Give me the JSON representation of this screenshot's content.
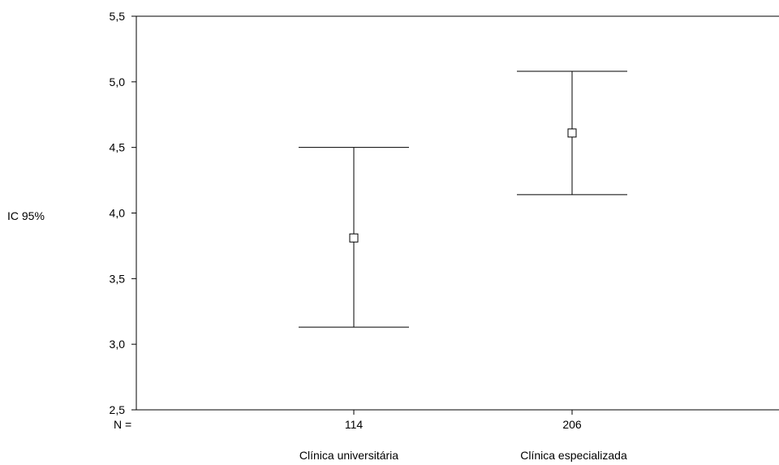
{
  "chart_data": {
    "type": "errorbar",
    "title": "",
    "xlabel": "",
    "ylabel": "IC 95%",
    "ylim": [
      2.5,
      5.5
    ],
    "yticks": [
      2.5,
      3.0,
      3.5,
      4.0,
      4.5,
      5.0,
      5.5
    ],
    "ytick_labels": [
      "2,5",
      "3,0",
      "3,5",
      "4,0",
      "4,5",
      "5,0",
      "5,5"
    ],
    "n_label": "N =",
    "categories": [
      "Clínica universitária",
      "Clínica especializada"
    ],
    "n": [
      "114",
      "206"
    ],
    "mean": [
      3.81,
      4.61
    ],
    "lower": [
      3.13,
      4.14
    ],
    "upper": [
      4.5,
      5.08
    ],
    "marker": "open-square",
    "grid": false,
    "line_color": "#000000"
  }
}
